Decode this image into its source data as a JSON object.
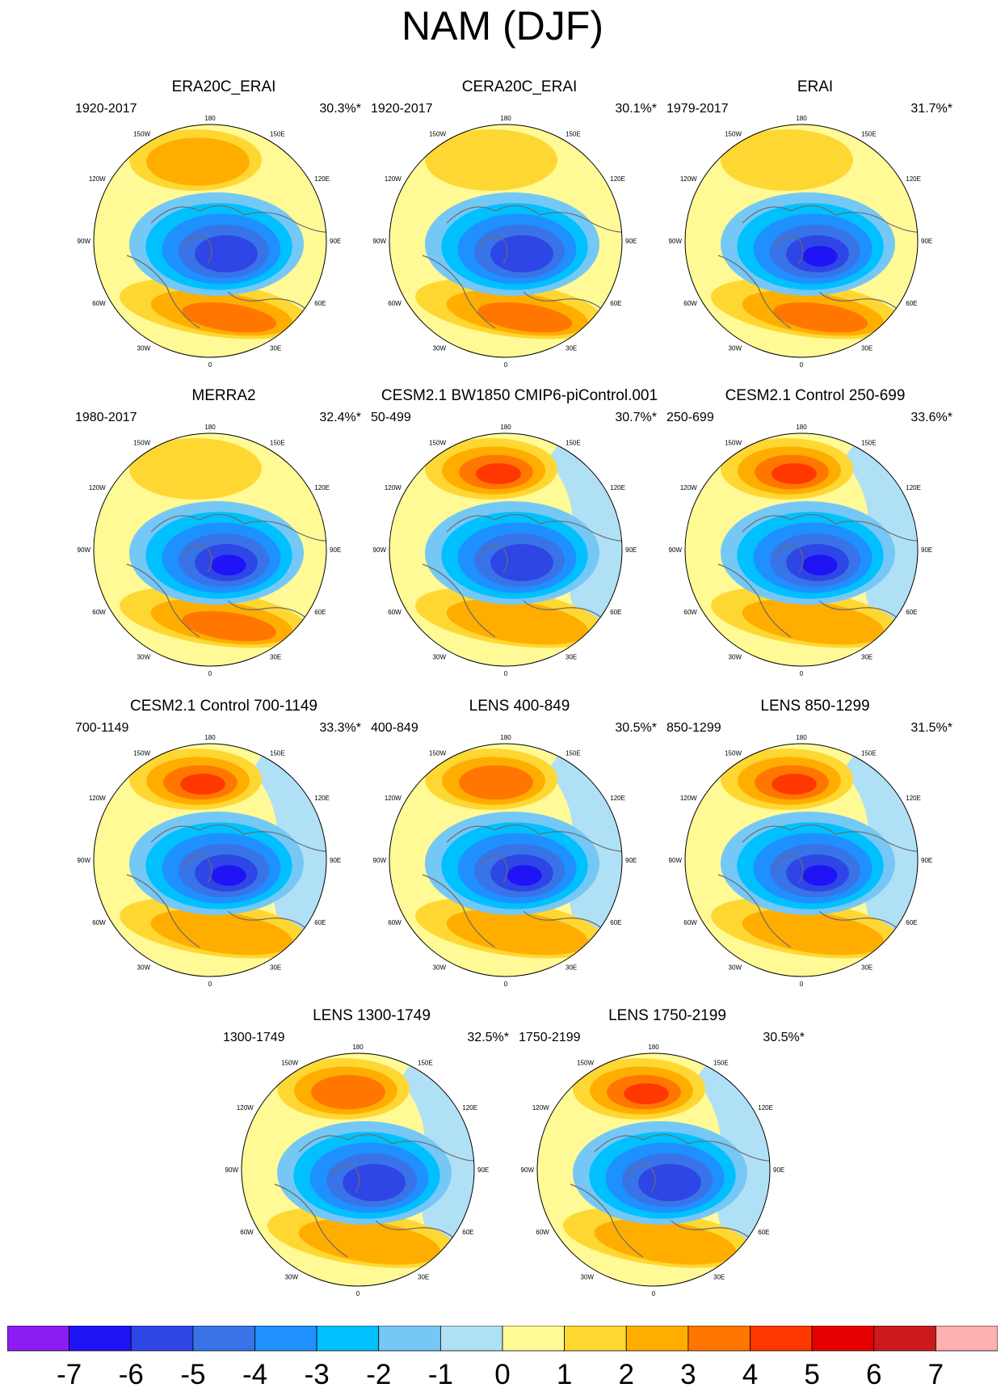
{
  "figure": {
    "title": "NAM (DJF)",
    "colorbar": {
      "labels": [
        "-7",
        "-6",
        "-5",
        "-4",
        "-3",
        "-2",
        "-1",
        "0",
        "1",
        "2",
        "3",
        "4",
        "5",
        "6",
        "7"
      ],
      "colors": [
        "#8c1cf2",
        "#1e14f5",
        "#2e46e6",
        "#3874e8",
        "#1e90ff",
        "#00c0ff",
        "#75c8f5",
        "#b0e0f5",
        "#fffa96",
        "#ffd733",
        "#ffae00",
        "#ff7700",
        "#ff3700",
        "#e60000",
        "#cc1a1a",
        "#ffb0b0"
      ]
    },
    "map_labels": {
      "top": "180",
      "bottom": "0",
      "left": "90W",
      "right": "90E",
      "upper_left_1": "150W",
      "upper_right_1": "150E",
      "upper_left_2": "120W",
      "upper_right_2": "120E",
      "lower_left_1": "60W",
      "lower_right_1": "60E",
      "lower_left_2": "30W",
      "lower_right_2": "30E"
    },
    "panels": [
      {
        "title": "ERA20C_ERAI",
        "period": "1920-2017",
        "variance": "30.3%*",
        "pacific_max": 2,
        "atlantic_max": 3,
        "arctic_min": -5,
        "eastern_blue": false
      },
      {
        "title": "CERA20C_ERAI",
        "period": "1920-2017",
        "variance": "30.1%*",
        "pacific_max": 1,
        "atlantic_max": 3,
        "arctic_min": -5,
        "eastern_blue": false
      },
      {
        "title": "ERAI",
        "period": "1979-2017",
        "variance": "31.7%*",
        "pacific_max": 1,
        "atlantic_max": 3,
        "arctic_min": -6,
        "eastern_blue": false
      },
      {
        "title": "MERRA2",
        "period": "1980-2017",
        "variance": "32.4%*",
        "pacific_max": 1,
        "atlantic_max": 3,
        "arctic_min": -6,
        "eastern_blue": false
      },
      {
        "title": "CESM2.1 BW1850 CMIP6-piControl.001",
        "period": "50-499",
        "variance": "30.7%*",
        "pacific_max": 4,
        "atlantic_max": 2,
        "arctic_min": -5,
        "eastern_blue": true
      },
      {
        "title": "CESM2.1 Control 250-699",
        "period": "250-699",
        "variance": "33.6%*",
        "pacific_max": 4,
        "atlantic_max": 2,
        "arctic_min": -6,
        "eastern_blue": true
      },
      {
        "title": "CESM2.1 Control 700-1149",
        "period": "700-1149",
        "variance": "33.3%*",
        "pacific_max": 4,
        "atlantic_max": 2,
        "arctic_min": -6,
        "eastern_blue": true
      },
      {
        "title": "LENS 400-849",
        "period": "400-849",
        "variance": "30.5%*",
        "pacific_max": 3,
        "atlantic_max": 2,
        "arctic_min": -6,
        "eastern_blue": true
      },
      {
        "title": "LENS 850-1299",
        "period": "850-1299",
        "variance": "31.5%*",
        "pacific_max": 4,
        "atlantic_max": 2,
        "arctic_min": -6,
        "eastern_blue": true
      },
      {
        "title": "LENS 1300-1749",
        "period": "1300-1749",
        "variance": "32.5%*",
        "pacific_max": 3,
        "atlantic_max": 2,
        "arctic_min": -5,
        "eastern_blue": true
      },
      {
        "title": "LENS 1750-2199",
        "period": "1750-2199",
        "variance": "30.5%*",
        "pacific_max": 4,
        "atlantic_max": 2,
        "arctic_min": -5,
        "eastern_blue": true
      }
    ]
  }
}
